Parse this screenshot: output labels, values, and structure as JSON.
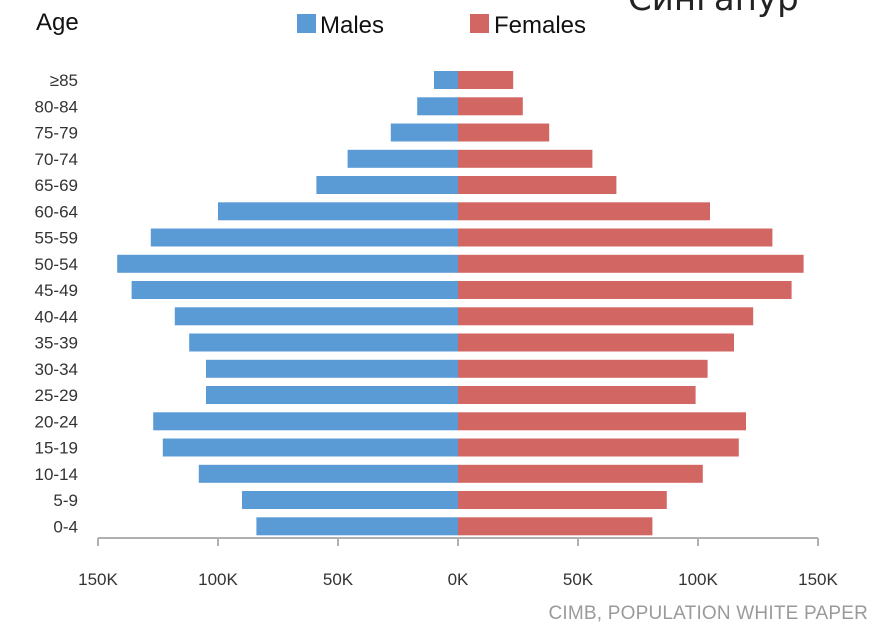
{
  "page_title": "Сингапур",
  "source": "CIMB, POPULATION WHITE PAPER",
  "colors": {
    "males": "#5b9bd5",
    "females": "#d26663"
  },
  "chart_data": {
    "type": "bar",
    "orientation": "horizontal",
    "subtype": "population-pyramid",
    "ylabel": "Age",
    "categories": [
      "0-4",
      "5-9",
      "10-14",
      "15-19",
      "20-24",
      "25-29",
      "30-34",
      "35-39",
      "40-44",
      "45-49",
      "50-54",
      "55-59",
      "60-64",
      "65-69",
      "70-74",
      "75-79",
      "80-84",
      "≥85"
    ],
    "series": [
      {
        "name": "Males",
        "values": [
          84000,
          90000,
          108000,
          123000,
          127000,
          105000,
          105000,
          112000,
          118000,
          136000,
          142000,
          128000,
          100000,
          59000,
          46000,
          28000,
          17000,
          10000
        ]
      },
      {
        "name": "Females",
        "values": [
          81000,
          87000,
          102000,
          117000,
          120000,
          99000,
          104000,
          115000,
          123000,
          139000,
          144000,
          131000,
          105000,
          66000,
          56000,
          38000,
          27000,
          23000
        ]
      }
    ],
    "xlim": [
      -150000,
      150000
    ],
    "xticks": [
      "150K",
      "100K",
      "50K",
      "0K",
      "50K",
      "100K",
      "150K"
    ],
    "legend_position": "top",
    "grid": false
  }
}
